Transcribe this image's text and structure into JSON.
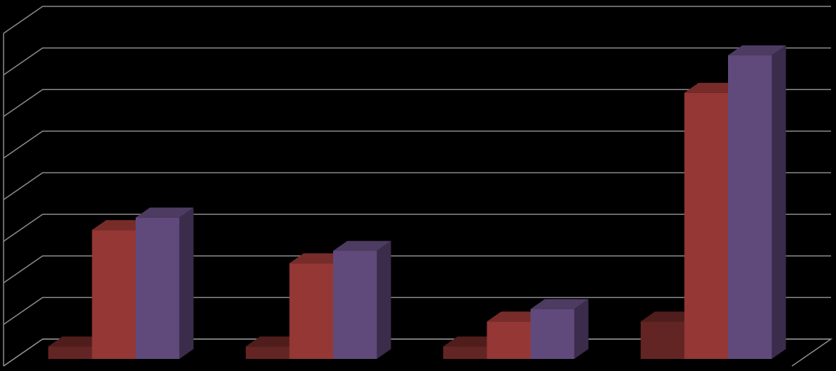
{
  "chart_data": {
    "type": "bar3d",
    "categories": [
      null,
      null,
      null,
      null
    ],
    "series": [
      {
        "color": "#632523",
        "values": [
          0.3,
          0.3,
          0.3,
          0.9
        ]
      },
      {
        "color": "#953735",
        "values": [
          3.1,
          2.3,
          0.9,
          6.4
        ]
      },
      {
        "color": "#604a7b",
        "values": [
          3.4,
          2.6,
          1.2,
          7.3
        ]
      }
    ],
    "ylim": [
      0,
      8
    ],
    "yticks": [
      0,
      1,
      2,
      3,
      4,
      5,
      6,
      7,
      8
    ],
    "grid": true,
    "background": "#000000"
  }
}
